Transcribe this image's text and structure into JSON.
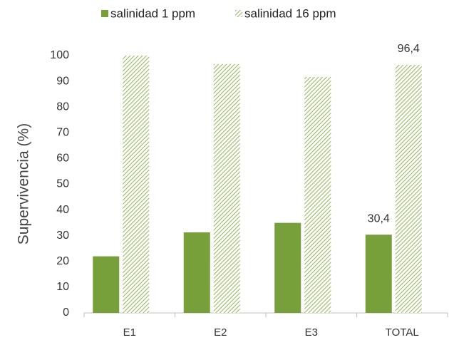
{
  "chart_data": {
    "type": "bar",
    "y_label": "Supervivencia  (%)",
    "categories": [
      "E1",
      "E2",
      "E3",
      "TOTAL"
    ],
    "series": [
      {
        "name": "salinidad 1 ppm",
        "color": "#77a03a",
        "hatch": false,
        "values": [
          22,
          31.3,
          35,
          30.4
        ],
        "value_labels": [
          null,
          null,
          null,
          "30,4"
        ]
      },
      {
        "name": "salinidad 16 ppm",
        "color": "#8fb654",
        "hatch": true,
        "values": [
          100,
          96.7,
          91.7,
          96.4
        ],
        "value_labels": [
          null,
          null,
          null,
          "96,4"
        ]
      }
    ],
    "ylim": [
      0,
      100
    ],
    "yticks": [
      0,
      10,
      20,
      30,
      40,
      50,
      60,
      70,
      80,
      90,
      100
    ],
    "grid": false,
    "legend": "top"
  }
}
